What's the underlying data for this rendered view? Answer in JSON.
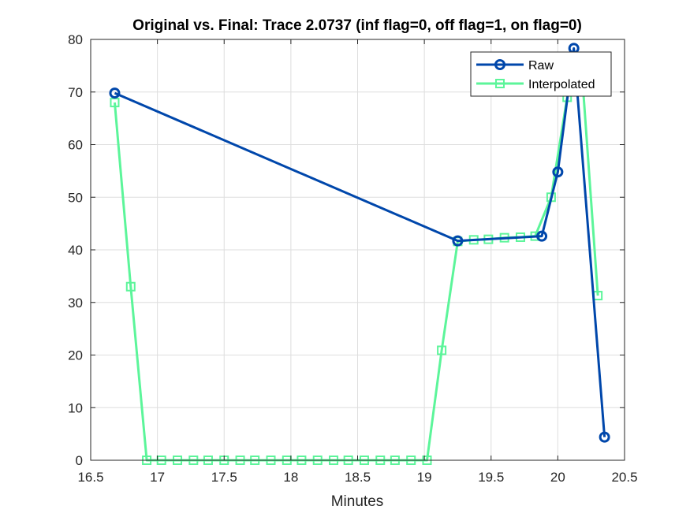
{
  "chart_data": {
    "type": "line",
    "title": "Original vs. Final: Trace 2.0737 (inf flag=0, off flag=1, on flag=0)",
    "xlabel": "Minutes",
    "ylabel": "",
    "xlim": [
      16.5,
      20.5
    ],
    "ylim": [
      0,
      80
    ],
    "xticks": [
      16.5,
      17,
      17.5,
      18,
      18.5,
      19,
      19.5,
      20,
      20.5
    ],
    "xtick_labels": [
      "16.5",
      "17",
      "17.5",
      "18",
      "18.5",
      "19",
      "19.5",
      "20",
      "20.5"
    ],
    "yticks": [
      0,
      10,
      20,
      30,
      40,
      50,
      60,
      70,
      80
    ],
    "ytick_labels": [
      "0",
      "10",
      "20",
      "30",
      "40",
      "50",
      "60",
      "70",
      "80"
    ],
    "grid": true,
    "legend_position": "top-right",
    "series": [
      {
        "name": "Raw",
        "marker": "circle",
        "color": "#0047AB",
        "x": [
          16.68,
          19.25,
          19.88,
          20.0,
          20.12,
          20.35
        ],
        "y": [
          69.8,
          41.7,
          42.6,
          54.8,
          78.3,
          4.4
        ]
      },
      {
        "name": "Interpolated",
        "marker": "square",
        "color": "#5CF59A",
        "x": [
          16.68,
          16.8,
          16.92,
          17.03,
          17.15,
          17.27,
          17.38,
          17.5,
          17.62,
          17.73,
          17.85,
          17.97,
          18.08,
          18.2,
          18.32,
          18.43,
          18.55,
          18.67,
          18.78,
          18.9,
          19.02,
          19.13,
          19.25,
          19.37,
          19.48,
          19.6,
          19.72,
          19.83,
          19.95,
          20.07,
          20.18,
          20.3
        ],
        "y": [
          68.0,
          33.0,
          0,
          0,
          0,
          0,
          0,
          0,
          0,
          0,
          0,
          0,
          0,
          0,
          0,
          0,
          0,
          0,
          0,
          0,
          0,
          20.9,
          41.6,
          41.9,
          42.0,
          42.3,
          42.4,
          42.6,
          50.0,
          69.0,
          74.0,
          31.3
        ]
      }
    ]
  }
}
